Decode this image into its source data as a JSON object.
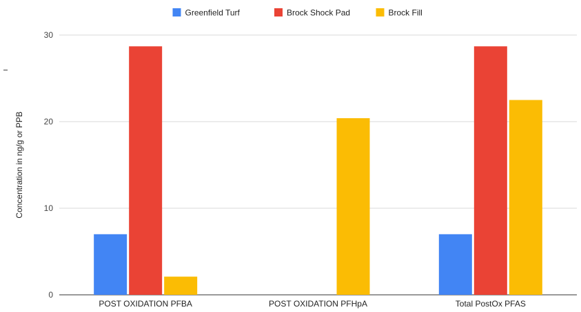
{
  "chart_data": {
    "type": "bar",
    "title": "",
    "xlabel": "",
    "ylabel": "Concentration in ng/g or PPB",
    "categories": [
      "POST OXIDATION PFBA",
      "POST OXIDATION PFHpA",
      "Total PostOx PFAS"
    ],
    "series": [
      {
        "name": "Greenfield Turf",
        "color": "#4285F4",
        "values": [
          7.0,
          0,
          7.0
        ]
      },
      {
        "name": "Brock Shock Pad",
        "color": "#EA4335",
        "values": [
          28.7,
          0,
          28.7
        ]
      },
      {
        "name": "Brock Fill",
        "color": "#FBBC04",
        "values": [
          2.1,
          20.4,
          22.5
        ]
      }
    ],
    "ylim": [
      0,
      30
    ],
    "yticks": [
      0,
      10,
      20,
      30
    ],
    "grid": true,
    "legend_position": "top-center"
  }
}
